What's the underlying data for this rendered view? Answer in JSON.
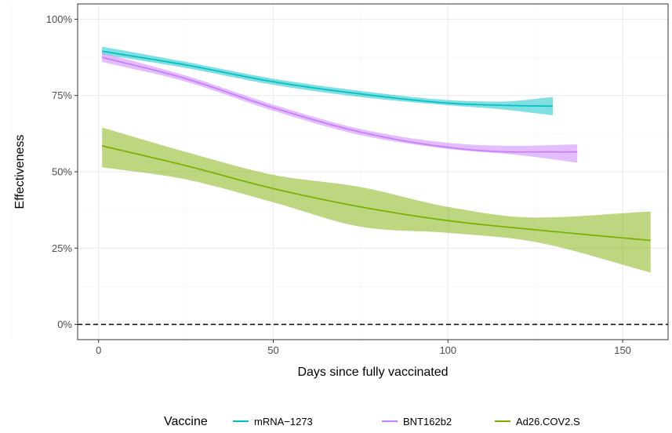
{
  "chart_data": {
    "type": "line",
    "xlabel": "Days since fully vaccinated",
    "ylabel": "Effectiveness",
    "xlim": [
      -6,
      163
    ],
    "ylim": [
      -5,
      105
    ],
    "x_ticks": [
      0,
      50,
      100,
      150
    ],
    "x_tick_labels": [
      "0",
      "50",
      "100",
      "150"
    ],
    "y_ticks": [
      0,
      25,
      50,
      75,
      100
    ],
    "y_tick_labels": [
      "0%",
      "25%",
      "50%",
      "75%",
      "100%"
    ],
    "grid": true,
    "reference_line": {
      "y": 0,
      "style": "dashed"
    },
    "legend": {
      "title": "Vaccine",
      "position": "bottom"
    },
    "series": [
      {
        "name": "mRNA−1273",
        "color": "#00BFC4",
        "x": [
          1,
          25,
          50,
          75,
          100,
          115,
          130
        ],
        "y": [
          89.5,
          85,
          79.5,
          75.5,
          72.5,
          71.8,
          71.5
        ],
        "lower": [
          88.5,
          84,
          78.5,
          74.5,
          71.8,
          70.5,
          68.5
        ],
        "upper": [
          91,
          86,
          80.5,
          76.5,
          73.5,
          73,
          74.5
        ]
      },
      {
        "name": "BNT162b2",
        "color": "#C77CFF",
        "x": [
          1,
          25,
          50,
          75,
          100,
          120,
          137
        ],
        "y": [
          87.5,
          80.5,
          71,
          63,
          58,
          56.5,
          56.5
        ],
        "lower": [
          86,
          79.5,
          70,
          62,
          57.5,
          55.5,
          53
        ],
        "upper": [
          89,
          81.5,
          72,
          64,
          59.5,
          58.5,
          59
        ]
      },
      {
        "name": "Ad26.COV2.S",
        "color": "#7CAE00",
        "x": [
          1,
          25,
          50,
          75,
          100,
          125,
          158
        ],
        "y": [
          58.5,
          52,
          44.5,
          38.5,
          34,
          31,
          27.5
        ],
        "lower": [
          51.5,
          47.5,
          40,
          32,
          30,
          27,
          17
        ],
        "upper": [
          64.5,
          56.5,
          49,
          45,
          38.5,
          35,
          37
        ]
      }
    ]
  }
}
